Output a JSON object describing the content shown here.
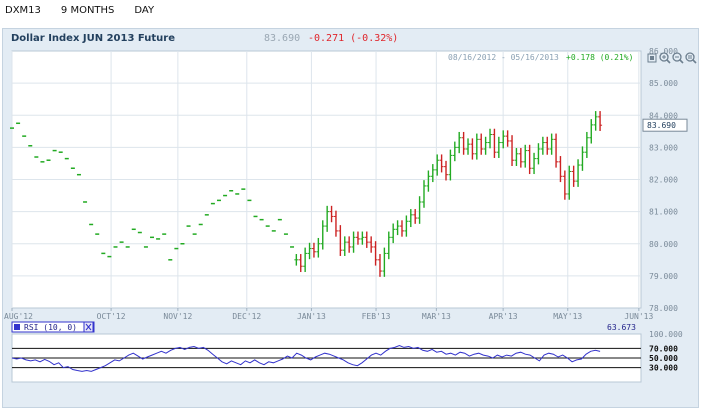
{
  "tabs": [
    {
      "label": "DXM13"
    },
    {
      "label": "9 MONTHS"
    },
    {
      "label": "DAY"
    }
  ],
  "header": {
    "title": "Dollar Index JUN 2013 Future",
    "price": "83.690",
    "change": "-0.271 (-0.32%)"
  },
  "range_info": {
    "dates": "08/16/2012 - 05/16/2013",
    "change": "+0.178 (0.21%)"
  },
  "colors": {
    "up": "#22aa22",
    "down": "#cc2222",
    "rsi_line": "#3333cc",
    "change_negative": "#e0262c",
    "change_positive": "#22aa22"
  },
  "icons": [
    "fullscreen-icon",
    "zoom-in-icon",
    "zoom-out-icon",
    "zoom-reset-icon"
  ],
  "last_price_marker": "83.690",
  "chart_data": [
    {
      "type": "ohlc",
      "x_range": [
        "2012-08-16",
        "2013-06-04"
      ],
      "ylim": [
        78,
        86
      ],
      "y_ticks": [
        "86.000",
        "85.000",
        "84.000",
        "83.000",
        "82.000",
        "81.000",
        "80.000",
        "79.000",
        "78.000"
      ],
      "x_ticks": [
        {
          "label": "AUG'12",
          "date": "2012-08-16"
        },
        {
          "label": "OCT'12",
          "date": "2012-10-01"
        },
        {
          "label": "NOV'12",
          "date": "2012-11-01"
        },
        {
          "label": "DEC'12",
          "date": "2012-12-03"
        },
        {
          "label": "JAN'13",
          "date": "2013-01-02"
        },
        {
          "label": "FEB'13",
          "date": "2013-02-01"
        },
        {
          "label": "MAR'13",
          "date": "2013-03-01"
        },
        {
          "label": "APR'13",
          "date": "2013-04-01"
        },
        {
          "label": "MAY'13",
          "date": "2013-05-01"
        },
        {
          "label": "JUN'13",
          "date": "2013-06-03"
        }
      ],
      "grid": true,
      "segments": [
        {
          "from": "2012-08-16",
          "to": "2012-12-24",
          "style": "dash",
          "close": [
            83.6,
            83.75,
            83.35,
            83.05,
            82.7,
            82.55,
            82.6,
            82.9,
            82.85,
            82.65,
            82.35,
            82.15,
            81.3,
            80.6,
            80.3,
            79.7,
            79.6,
            79.9,
            80.05,
            79.9,
            80.45,
            80.35,
            79.9,
            80.2,
            80.15,
            80.3,
            79.5,
            79.85,
            80.0,
            80.55,
            80.3,
            80.6,
            80.9,
            81.25,
            81.35,
            81.5,
            81.65,
            81.55,
            81.7,
            81.35,
            80.85,
            80.75,
            80.55,
            80.4,
            80.75,
            80.3,
            79.9
          ]
        },
        {
          "from": "2012-12-26",
          "to": "2013-05-16",
          "style": "ohlc",
          "close": [
            79.5,
            79.3,
            79.7,
            79.85,
            79.75,
            80.0,
            80.55,
            81.0,
            80.85,
            80.4,
            79.8,
            80.05,
            79.9,
            80.2,
            80.15,
            80.2,
            80.05,
            79.9,
            79.5,
            79.15,
            79.7,
            80.2,
            80.45,
            80.55,
            80.4,
            80.7,
            80.9,
            80.8,
            81.3,
            81.8,
            82.1,
            82.3,
            82.6,
            82.4,
            82.15,
            82.75,
            83.0,
            83.3,
            82.95,
            83.1,
            82.8,
            83.25,
            82.95,
            83.15,
            83.4,
            82.85,
            83.15,
            83.35,
            83.2,
            82.6,
            82.8,
            82.55,
            82.9,
            82.35,
            82.65,
            82.95,
            83.15,
            82.95,
            83.25,
            82.55,
            82.1,
            81.55,
            82.25,
            81.95,
            82.45,
            82.85,
            83.3,
            83.7,
            83.95,
            83.69
          ]
        }
      ],
      "last": 83.69
    },
    {
      "type": "line",
      "title": "RSI (10, 0)",
      "last_value": "63.673",
      "ylim": [
        0,
        100
      ],
      "y_ticks": [
        "100.000",
        "70.000",
        "50.000",
        "30.000"
      ],
      "levels": [
        70,
        50,
        30
      ],
      "x_range": [
        "2012-08-16",
        "2013-05-16"
      ],
      "values": [
        50,
        48,
        50,
        46,
        44,
        46,
        42,
        47,
        43,
        36,
        40,
        30,
        32,
        26,
        24,
        22,
        24,
        22,
        26,
        30,
        34,
        40,
        46,
        44,
        50,
        56,
        60,
        54,
        48,
        52,
        56,
        60,
        64,
        60,
        66,
        70,
        72,
        68,
        72,
        74,
        70,
        72,
        66,
        58,
        50,
        42,
        38,
        44,
        40,
        36,
        44,
        40,
        46,
        40,
        36,
        42,
        40,
        44,
        48,
        54,
        50,
        60,
        56,
        50,
        46,
        52,
        56,
        60,
        58,
        54,
        50,
        46,
        40,
        36,
        34,
        40,
        48,
        56,
        60,
        56,
        64,
        70,
        72,
        76,
        72,
        74,
        70,
        72,
        66,
        64,
        68,
        62,
        64,
        58,
        60,
        56,
        62,
        60,
        54,
        58,
        60,
        56,
        54,
        50,
        56,
        52,
        56,
        54,
        60,
        62,
        58,
        56,
        50,
        44,
        56,
        60,
        58,
        52,
        56,
        50,
        42,
        46,
        48,
        58,
        64,
        66,
        63.673
      ]
    }
  ]
}
